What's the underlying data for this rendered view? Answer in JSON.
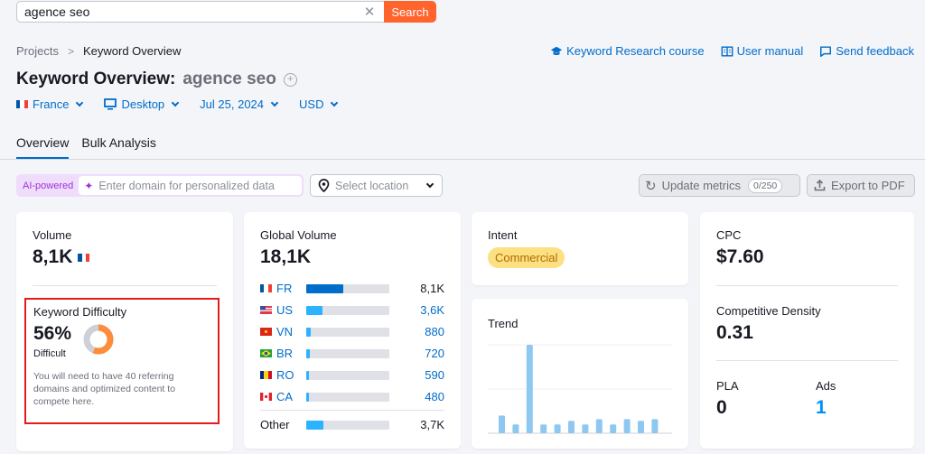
{
  "search": {
    "value": "agence seo",
    "button": "Search",
    "clear_icon": "close-icon"
  },
  "breadcrumb": {
    "items": [
      "Projects",
      "Keyword Overview"
    ],
    "separator": ">"
  },
  "header_links": [
    {
      "label": "Keyword Research course",
      "icon": "graduation-cap-icon"
    },
    {
      "label": "User manual",
      "icon": "book-icon"
    },
    {
      "label": "Send feedback",
      "icon": "comment-icon"
    }
  ],
  "title": {
    "prefix": "Keyword Overview:",
    "keyword": "agence seo",
    "add_icon": "plus-circle-icon"
  },
  "filters": {
    "country": "France",
    "device": "Desktop",
    "date": "Jul 25, 2024",
    "currency": "USD"
  },
  "tabs": [
    {
      "label": "Overview",
      "active": true
    },
    {
      "label": "Bulk Analysis",
      "active": false
    }
  ],
  "toolbar": {
    "ai_label": "AI-powered",
    "domain_placeholder": "Enter domain for personalized data",
    "location_placeholder": "Select location",
    "update_label": "Update metrics",
    "update_count": "0/250",
    "export_label": "Export to PDF"
  },
  "volume": {
    "label": "Volume",
    "value": "8,1K"
  },
  "keyword_difficulty": {
    "label": "Keyword Difficulty",
    "value": "56%",
    "percent": 56,
    "level": "Difficult",
    "description": "You will need to have 40 referring domains and optimized content to compete here.",
    "color": "#ff8c3a"
  },
  "global_volume": {
    "label": "Global Volume",
    "value": "18,1K",
    "countries": [
      {
        "code": "FR",
        "value": "8,1K",
        "pct": 45,
        "color": "#006dca"
      },
      {
        "code": "US",
        "value": "3,6K",
        "pct": 20,
        "color": "#2bb3ff"
      },
      {
        "code": "VN",
        "value": "880",
        "pct": 5,
        "color": "#2bb3ff"
      },
      {
        "code": "BR",
        "value": "720",
        "pct": 4,
        "color": "#2bb3ff"
      },
      {
        "code": "RO",
        "value": "590",
        "pct": 3,
        "color": "#2bb3ff"
      },
      {
        "code": "CA",
        "value": "480",
        "pct": 3,
        "color": "#2bb3ff"
      }
    ],
    "other": {
      "label": "Other",
      "value": "3,7K",
      "pct": 21
    }
  },
  "intent": {
    "label": "Intent",
    "value": "Commercial"
  },
  "trend": {
    "label": "Trend",
    "bars": [
      20,
      10,
      100,
      10,
      10,
      14,
      10,
      16,
      10,
      16,
      14,
      16
    ]
  },
  "cpc": {
    "label": "CPC",
    "value": "$7.60"
  },
  "competitive_density": {
    "label": "Competitive Density",
    "value": "0.31"
  },
  "pla": {
    "label": "PLA",
    "value": "0"
  },
  "ads": {
    "label": "Ads",
    "value": "1"
  }
}
